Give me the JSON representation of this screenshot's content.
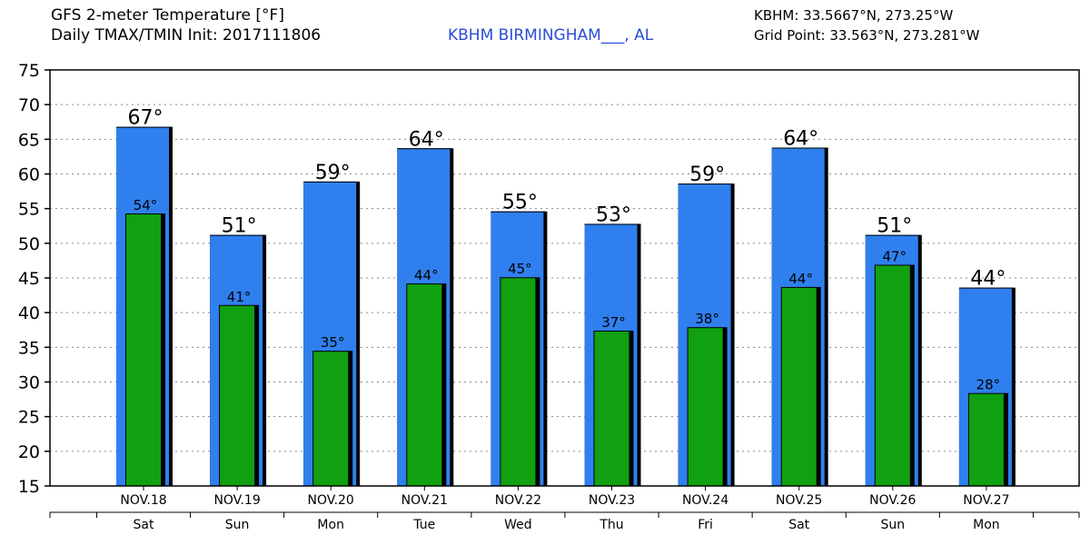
{
  "header": {
    "title_line1": "GFS 2-meter Temperature [°F]",
    "title_line2": "Daily TMAX/TMIN Init: 2017111806",
    "station": "KBHM BIRMINGHAM___, AL",
    "station_coords": "KBHM: 33.5667°N, 273.25°W",
    "grid_point": "Grid Point: 33.563°N, 273.281°W"
  },
  "colors": {
    "tmax": "#2f80ee",
    "tmin": "#10a010",
    "station_text": "#2a4cd8",
    "grid": "#888888"
  },
  "chart_data": {
    "type": "bar",
    "categories": [
      "NOV.18",
      "NOV.19",
      "NOV.20",
      "NOV.21",
      "NOV.22",
      "NOV.23",
      "NOV.24",
      "NOV.25",
      "NOV.26",
      "NOV.27"
    ],
    "weekdays": [
      "Sat",
      "Sun",
      "Mon",
      "Tue",
      "Wed",
      "Thu",
      "Fri",
      "Sat",
      "Sun",
      "Mon"
    ],
    "series": [
      {
        "key": "tmax",
        "values": [
          66.8,
          51.2,
          58.9,
          63.7,
          54.6,
          52.8,
          58.6,
          63.8,
          51.2,
          43.6
        ],
        "labels": [
          "67°",
          "51°",
          "59°",
          "64°",
          "55°",
          "53°",
          "59°",
          "64°",
          "51°",
          "44°"
        ]
      },
      {
        "key": "tmin",
        "values": [
          54.3,
          41.1,
          34.5,
          44.2,
          45.1,
          37.4,
          37.9,
          43.7,
          46.9,
          28.4
        ],
        "labels": [
          "54°",
          "41°",
          "35°",
          "44°",
          "45°",
          "37°",
          "38°",
          "44°",
          "47°",
          "28°"
        ]
      }
    ],
    "ylim": [
      15,
      75
    ],
    "yticks": [
      "15",
      "20",
      "25",
      "30",
      "35",
      "40",
      "45",
      "50",
      "55",
      "60",
      "65",
      "70",
      "75"
    ],
    "grid": true,
    "legend": "none",
    "title": "GFS 2-meter Temperature [°F]",
    "xlabel": "",
    "ylabel": ""
  }
}
